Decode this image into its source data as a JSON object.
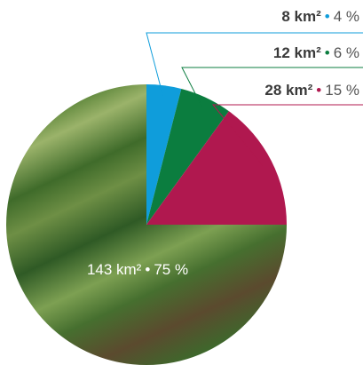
{
  "chart_data": {
    "type": "pie",
    "categories": [
      "8 km²",
      "12 km²",
      "28 km²",
      "143 km²"
    ],
    "values": [
      4,
      6,
      15,
      75
    ],
    "value_labels": [
      "4 %",
      "6 %",
      "15 %",
      "75 %"
    ],
    "colors": [
      "#0f9ddb",
      "#0b7d3f",
      "#b0184f",
      "#5d8a3a"
    ]
  }
}
